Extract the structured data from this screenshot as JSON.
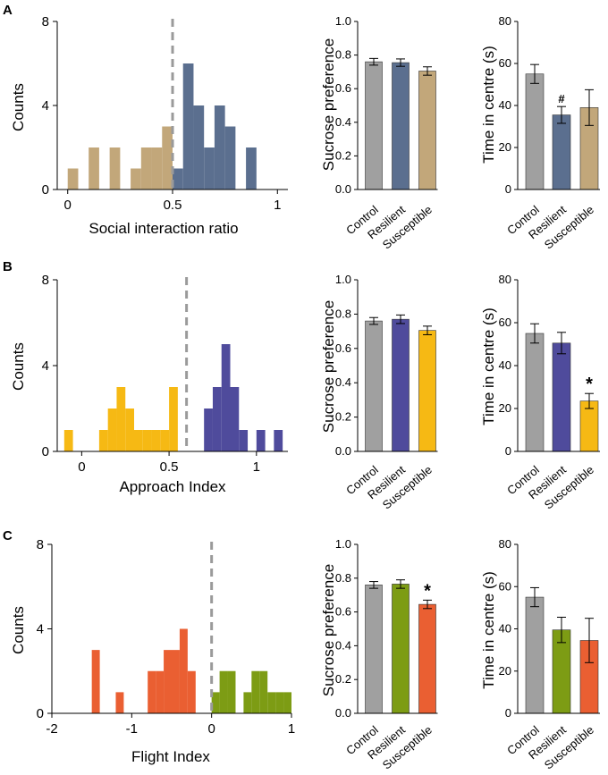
{
  "panels": [
    {
      "letter": "A",
      "histogram": {
        "type": "bar",
        "xlabel": "Social interaction ratio",
        "ylabel": "Counts",
        "xlim": [
          -0.05,
          1.05
        ],
        "ylim": [
          0,
          8
        ],
        "xticks": [
          0,
          0.5,
          1
        ],
        "xtick_labels": [
          "0",
          "0.5",
          "1"
        ],
        "yticks": [
          0,
          4,
          8
        ],
        "ytick_labels": [
          "0",
          "4",
          "8"
        ],
        "threshold": 0.5,
        "bin_width": 0.05,
        "bins": [
          {
            "x": 0.0,
            "count": 1,
            "group": "susceptible"
          },
          {
            "x": 0.2,
            "count": 2,
            "group": "susceptible"
          },
          {
            "x": 0.1,
            "count": 2,
            "group": "susceptible"
          },
          {
            "x": 0.3,
            "count": 1,
            "group": "susceptible"
          },
          {
            "x": 0.35,
            "count": 2,
            "group": "susceptible"
          },
          {
            "x": 0.4,
            "count": 2,
            "group": "susceptible"
          },
          {
            "x": 0.45,
            "count": 3,
            "group": "susceptible"
          },
          {
            "x": 0.5,
            "count": 1,
            "group": "resilient"
          },
          {
            "x": 0.55,
            "count": 6,
            "group": "resilient"
          },
          {
            "x": 0.6,
            "count": 4,
            "group": "resilient"
          },
          {
            "x": 0.65,
            "count": 2,
            "group": "resilient"
          },
          {
            "x": 0.7,
            "count": 4,
            "group": "resilient"
          },
          {
            "x": 0.75,
            "count": 3,
            "group": "resilient"
          },
          {
            "x": 0.85,
            "count": 2,
            "group": "resilient"
          }
        ]
      },
      "sucrose": {
        "type": "bar",
        "ylabel": "Sucrose preference",
        "categories": [
          "Control",
          "Resilient",
          "Susceptible"
        ],
        "values": [
          0.76,
          0.755,
          0.705
        ],
        "errors": [
          0.02,
          0.022,
          0.025
        ],
        "ylim": [
          0,
          1.0
        ],
        "yticks": [
          0,
          0.2,
          0.4,
          0.6,
          0.8,
          1.0
        ],
        "ytick_labels": [
          "0.0",
          "0.2",
          "0.4",
          "0.6",
          "0.8",
          "1.0"
        ],
        "annotations": [
          "",
          "",
          ""
        ]
      },
      "centre": {
        "type": "bar",
        "ylabel": "Time in centre (s)",
        "categories": [
          "Control",
          "Resilient",
          "Susceptible"
        ],
        "values": [
          55,
          35.5,
          39
        ],
        "errors": [
          4.5,
          4,
          8.5
        ],
        "ylim": [
          0,
          80
        ],
        "yticks": [
          0,
          20,
          40,
          60,
          80
        ],
        "ytick_labels": [
          "0",
          "20",
          "40",
          "60",
          "80"
        ],
        "annotations": [
          "",
          "#",
          ""
        ]
      }
    },
    {
      "letter": "B",
      "histogram": {
        "type": "bar",
        "xlabel": "Approach Index",
        "ylabel": "Counts",
        "xlim": [
          -0.14,
          1.18
        ],
        "ylim": [
          0,
          8
        ],
        "xticks": [
          0,
          0.5,
          1
        ],
        "xtick_labels": [
          "0",
          "0.5",
          "1"
        ],
        "yticks": [
          0,
          4,
          8
        ],
        "ytick_labels": [
          "0",
          "4",
          "8"
        ],
        "threshold": 0.6,
        "bin_width": 0.05,
        "bins": [
          {
            "x": -0.1,
            "count": 1,
            "group": "susceptible"
          },
          {
            "x": 0.1,
            "count": 1,
            "group": "susceptible"
          },
          {
            "x": 0.15,
            "count": 2,
            "group": "susceptible"
          },
          {
            "x": 0.2,
            "count": 3,
            "group": "susceptible"
          },
          {
            "x": 0.25,
            "count": 2,
            "group": "susceptible"
          },
          {
            "x": 0.3,
            "count": 1,
            "group": "susceptible"
          },
          {
            "x": 0.35,
            "count": 1,
            "group": "susceptible"
          },
          {
            "x": 0.4,
            "count": 1,
            "group": "susceptible"
          },
          {
            "x": 0.45,
            "count": 1,
            "group": "susceptible"
          },
          {
            "x": 0.5,
            "count": 3,
            "group": "susceptible"
          },
          {
            "x": 0.7,
            "count": 2,
            "group": "resilient"
          },
          {
            "x": 0.75,
            "count": 3,
            "group": "resilient"
          },
          {
            "x": 0.8,
            "count": 5,
            "group": "resilient"
          },
          {
            "x": 0.85,
            "count": 3,
            "group": "resilient"
          },
          {
            "x": 0.9,
            "count": 1,
            "group": "resilient"
          },
          {
            "x": 1.0,
            "count": 1,
            "group": "resilient"
          },
          {
            "x": 1.1,
            "count": 1,
            "group": "resilient"
          }
        ]
      },
      "sucrose": {
        "type": "bar",
        "ylabel": "Sucrose preference",
        "categories": [
          "Control",
          "Resilient",
          "Susceptible"
        ],
        "values": [
          0.76,
          0.77,
          0.705
        ],
        "errors": [
          0.02,
          0.025,
          0.025
        ],
        "ylim": [
          0,
          1.0
        ],
        "yticks": [
          0,
          0.2,
          0.4,
          0.6,
          0.8,
          1.0
        ],
        "ytick_labels": [
          "0.0",
          "0.2",
          "0.4",
          "0.6",
          "0.8",
          "1.0"
        ],
        "annotations": [
          "",
          "",
          ""
        ]
      },
      "centre": {
        "type": "bar",
        "ylabel": "Time in centre (s)",
        "categories": [
          "Control",
          "Resilient",
          "Susceptible"
        ],
        "values": [
          55,
          50.5,
          23.5
        ],
        "errors": [
          4.5,
          5,
          3.5
        ],
        "ylim": [
          0,
          80
        ],
        "yticks": [
          0,
          20,
          40,
          60,
          80
        ],
        "ytick_labels": [
          "0",
          "20",
          "40",
          "60",
          "80"
        ],
        "annotations": [
          "",
          "",
          "*"
        ]
      }
    },
    {
      "letter": "C",
      "histogram": {
        "type": "bar",
        "xlabel": "Flight Index",
        "ylabel": "Counts",
        "xlim": [
          -2,
          1
        ],
        "ylim": [
          0,
          8
        ],
        "xticks": [
          -2,
          -1,
          0,
          1
        ],
        "xtick_labels": [
          "-2",
          "-1",
          "0",
          "1"
        ],
        "yticks": [
          0,
          4,
          8
        ],
        "ytick_labels": [
          "0",
          "4",
          "8"
        ],
        "threshold": 0,
        "bin_width": 0.1,
        "bins": [
          {
            "x": -1.5,
            "count": 3,
            "group": "susceptible"
          },
          {
            "x": -1.2,
            "count": 1,
            "group": "susceptible"
          },
          {
            "x": -0.8,
            "count": 2,
            "group": "susceptible"
          },
          {
            "x": -0.7,
            "count": 2,
            "group": "susceptible"
          },
          {
            "x": -0.6,
            "count": 3,
            "group": "susceptible"
          },
          {
            "x": -0.5,
            "count": 3,
            "group": "susceptible"
          },
          {
            "x": -0.4,
            "count": 4,
            "group": "susceptible"
          },
          {
            "x": -0.3,
            "count": 2,
            "group": "susceptible"
          },
          {
            "x": 0.0,
            "count": 1,
            "group": "resilient"
          },
          {
            "x": 0.1,
            "count": 2,
            "group": "resilient"
          },
          {
            "x": 0.2,
            "count": 2,
            "group": "resilient"
          },
          {
            "x": 0.4,
            "count": 1,
            "group": "resilient"
          },
          {
            "x": 0.5,
            "count": 2,
            "group": "resilient"
          },
          {
            "x": 0.6,
            "count": 2,
            "group": "resilient"
          },
          {
            "x": 0.7,
            "count": 1,
            "group": "resilient"
          },
          {
            "x": 0.8,
            "count": 1,
            "group": "resilient"
          },
          {
            "x": 0.9,
            "count": 1,
            "group": "resilient"
          }
        ]
      },
      "sucrose": {
        "type": "bar",
        "ylabel": "Sucrose preference",
        "categories": [
          "Control",
          "Resilient",
          "Susceptible"
        ],
        "values": [
          0.76,
          0.765,
          0.645
        ],
        "errors": [
          0.02,
          0.025,
          0.025
        ],
        "ylim": [
          0,
          1.0
        ],
        "yticks": [
          0,
          0.2,
          0.4,
          0.6,
          0.8,
          1.0
        ],
        "ytick_labels": [
          "0.0",
          "0.2",
          "0.4",
          "0.6",
          "0.8",
          "1.0"
        ],
        "annotations": [
          "",
          "",
          "*"
        ]
      },
      "centre": {
        "type": "bar",
        "ylabel": "Time in centre (s)",
        "categories": [
          "Control",
          "Resilient",
          "Susceptible"
        ],
        "values": [
          55,
          39.5,
          34.5
        ],
        "errors": [
          4.5,
          6,
          10.5
        ],
        "ylim": [
          0,
          80
        ],
        "yticks": [
          0,
          20,
          40,
          60,
          80
        ],
        "ytick_labels": [
          "0",
          "20",
          "40",
          "60",
          "80"
        ],
        "annotations": [
          "",
          "",
          ""
        ]
      }
    }
  ],
  "colors": {
    "control": "#a0a0a0",
    "A_resilient": "#5b6f8f",
    "A_susceptible": "#c2a77a",
    "B_resilient": "#4f4b9c",
    "B_susceptible": "#f6b914",
    "C_resilient": "#7d9c14",
    "C_susceptible": "#ea5f32",
    "threshold_line": "#9a9a9a"
  }
}
